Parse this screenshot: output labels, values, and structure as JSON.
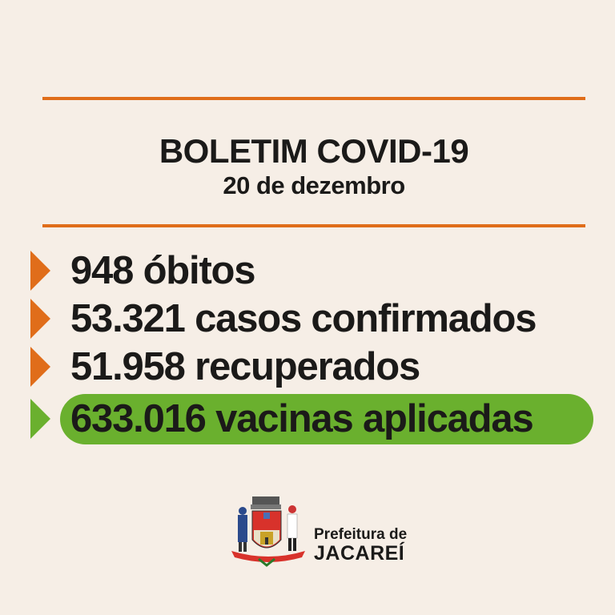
{
  "header": {
    "title": "BOLETIM COVID-19",
    "date": "20 de dezembro"
  },
  "stats": [
    {
      "text": "948 óbitos",
      "color": "#e06d1a"
    },
    {
      "text": "53.321 casos confirmados",
      "color": "#e06d1a"
    },
    {
      "text": "51.958 recuperados",
      "color": "#e06d1a"
    },
    {
      "text": "633.016 vacinas aplicadas",
      "color": "#6ab02e",
      "highlighted": true
    }
  ],
  "footer": {
    "line1": "Prefeitura de",
    "line2": "JACAREÍ",
    "logo_icon": "jacarei-coat-of-arms"
  },
  "colors": {
    "background": "#f6eee6",
    "accent": "#e06d1a",
    "highlight": "#6ab02e"
  }
}
